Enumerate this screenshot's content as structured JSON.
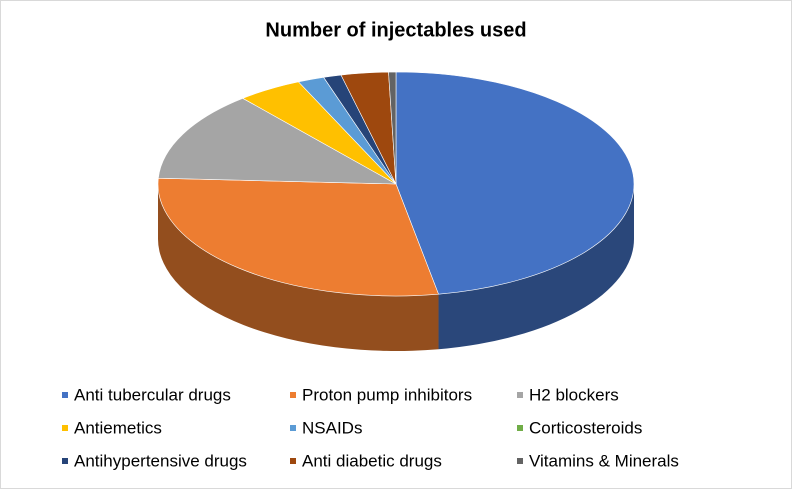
{
  "chart_data": {
    "type": "pie3d",
    "title": "Number of injectables used",
    "categories": [
      "Anti tubercular drugs",
      "Proton pump inhibitors",
      "H2 blockers",
      "Antiemetics",
      "NSAIDs",
      "Corticosteroids",
      "Antihypertensive drugs",
      "Anti diabetic drugs",
      "Vitamins & Minerals"
    ],
    "values": [
      47,
      28.6,
      13,
      4.4,
      1.8,
      0,
      1.2,
      3.2,
      0.5
    ],
    "colors": [
      "#4472c4",
      "#ed7d31",
      "#a5a5a5",
      "#ffc000",
      "#5b9bd5",
      "#70ad47",
      "#264478",
      "#9e480e",
      "#636363"
    ],
    "legend": "bottom"
  }
}
